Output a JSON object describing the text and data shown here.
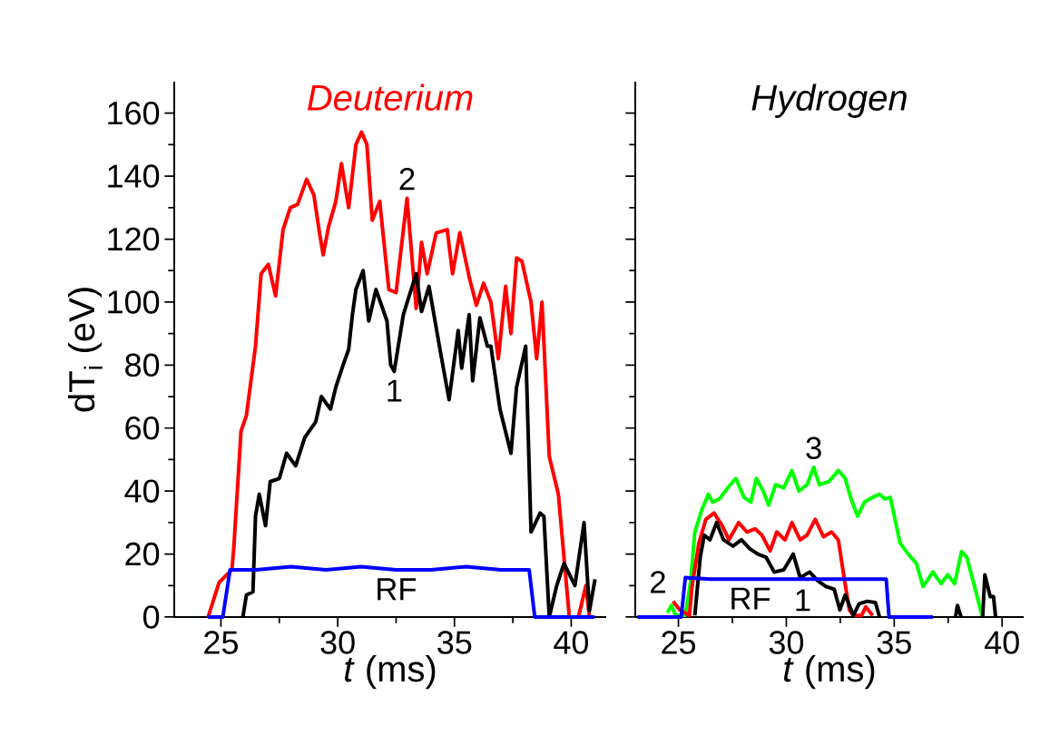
{
  "chart_data": [
    {
      "type": "line",
      "title": "Deuterium",
      "xlabel": "*t* (ms)",
      "ylabel": "dT$_{i}$ (eV)",
      "xlim": [
        23,
        41.5
      ],
      "ylim": [
        0,
        170
      ],
      "xticks": [
        25,
        30,
        35,
        40
      ],
      "yticks": [
        0,
        20,
        40,
        60,
        80,
        100,
        120,
        140,
        160
      ],
      "series": [
        {
          "name": "2",
          "color": "#ff0000",
          "x": [
            24.45,
            24.92,
            25.47,
            25.55,
            25.86,
            26.09,
            26.48,
            26.72,
            27.03,
            27.34,
            27.66,
            27.97,
            28.28,
            28.67,
            28.98,
            29.22,
            29.38,
            29.61,
            29.92,
            30.16,
            30.47,
            30.78,
            31.02,
            31.25,
            31.48,
            31.8,
            32.19,
            32.5,
            32.97,
            33.36,
            33.59,
            33.83,
            34.22,
            34.69,
            34.92,
            35.23,
            35.63,
            35.94,
            36.25,
            36.56,
            36.88,
            37.19,
            37.42,
            37.66,
            37.89,
            38.28,
            38.52,
            38.75,
            39.06,
            39.45,
            39.92,
            40.31,
            40.63,
            40.78
          ],
          "values": [
            0,
            11,
            15,
            22,
            59,
            64,
            86,
            109,
            112,
            102,
            123,
            130,
            131,
            139,
            134,
            122,
            115,
            124,
            132,
            144,
            130,
            150,
            154,
            150,
            126,
            132,
            104,
            103,
            133,
            98,
            119,
            109,
            122,
            123,
            109,
            122,
            108,
            99,
            106,
            100,
            82,
            105,
            90,
            114,
            113,
            100,
            82,
            100,
            51,
            39,
            0,
            0,
            10,
            0
          ]
        },
        {
          "name": "1",
          "color": "#000000",
          "x": [
            25.94,
            26.09,
            26.37,
            26.48,
            26.64,
            26.91,
            27.11,
            27.5,
            27.81,
            28.2,
            28.59,
            29.06,
            29.3,
            29.69,
            29.92,
            30.23,
            30.47,
            30.63,
            30.78,
            31.09,
            31.33,
            31.64,
            32.11,
            32.27,
            32.42,
            32.81,
            33.36,
            33.59,
            33.91,
            34.38,
            34.77,
            35.16,
            35.31,
            35.63,
            35.78,
            36.09,
            36.41,
            36.56,
            36.95,
            37.42,
            37.66,
            38.05,
            38.28,
            38.67,
            38.83,
            39.06,
            39.38,
            39.69,
            40.16,
            40.55,
            40.78,
            41.02
          ],
          "values": [
            0,
            7,
            8,
            32,
            39,
            29,
            43,
            44,
            52,
            48,
            57,
            62,
            70,
            66,
            73,
            80,
            85,
            96,
            104,
            110,
            94,
            104,
            94,
            80,
            78,
            96,
            109,
            97,
            105,
            85,
            69,
            91,
            79,
            96,
            75,
            95,
            86,
            86,
            66,
            52,
            73,
            86,
            27,
            33,
            32,
            0,
            10,
            17,
            10,
            30,
            2,
            12
          ]
        },
        {
          "name": "RF",
          "color": "#0000ff",
          "x": [
            24.45,
            25.08,
            25.39,
            26.5,
            28,
            29.5,
            31,
            32.5,
            34,
            35.5,
            37,
            38.2,
            38.44,
            41.0
          ],
          "values": [
            0,
            0,
            15,
            15,
            16,
            15,
            16,
            15,
            15,
            16,
            15,
            15,
            0,
            0
          ]
        }
      ],
      "legend": false
    },
    {
      "type": "line",
      "title": "Hydrogen",
      "xlabel": "*t* (ms)",
      "xlim": [
        23,
        41
      ],
      "ylim": [
        0,
        170
      ],
      "xticks": [
        25,
        30,
        35,
        40
      ],
      "yticks": [
        0,
        20,
        40,
        60,
        80,
        100,
        120,
        140,
        160
      ],
      "tick_labels": "x",
      "series": [
        {
          "name": "3",
          "color": "#00ff00",
          "x": [
            24.49,
            24.68,
            24.87,
            25.32,
            25.57,
            25.76,
            26.08,
            26.39,
            26.58,
            26.9,
            27.28,
            27.66,
            28.04,
            28.36,
            28.61,
            28.93,
            29.18,
            29.5,
            29.88,
            30.26,
            30.58,
            30.96,
            31.27,
            31.53,
            31.97,
            32.41,
            32.73,
            32.98,
            33.3,
            33.62,
            34.0,
            34.32,
            34.57,
            34.82,
            35.27,
            35.65,
            36.03,
            36.34,
            36.79,
            37.17,
            37.48,
            37.8,
            38.12,
            38.37,
            38.69,
            39.07
          ],
          "values": [
            1.4,
            3.7,
            0.5,
            0.5,
            11.5,
            27,
            34,
            39,
            36.5,
            37.5,
            41,
            44,
            38,
            36.5,
            44,
            40,
            35.5,
            42,
            41,
            46.5,
            40,
            42,
            47.5,
            42,
            43,
            46.5,
            44,
            38,
            32,
            36.5,
            38,
            39,
            37.5,
            38,
            23.5,
            20,
            17,
            9.7,
            14.3,
            10.6,
            13.4,
            10.6,
            20.8,
            18.9,
            10.6,
            0.5
          ]
        },
        {
          "name": "2",
          "color": "#ff0000",
          "x": [
            24.75,
            25.06,
            25.51,
            25.63,
            25.95,
            26.27,
            26.65,
            27.03,
            27.34,
            27.79,
            28.17,
            28.55,
            28.87,
            29.25,
            29.56,
            29.94,
            30.26,
            30.64,
            30.96,
            31.34,
            31.72,
            32.1,
            32.41,
            32.6,
            32.92,
            33.11,
            33.49,
            33.68,
            34.0
          ],
          "values": [
            5,
            2.3,
            0.5,
            9.7,
            23.5,
            31,
            33,
            29,
            24.5,
            30,
            27,
            28,
            26,
            21,
            27,
            24.5,
            30,
            24.5,
            26,
            31,
            25.5,
            27,
            24.5,
            16,
            2.3,
            0.5,
            0.5,
            3.2,
            0.5
          ]
        },
        {
          "name": "1",
          "color": "#000000",
          "x": [
            25.76,
            26.01,
            26.2,
            26.46,
            26.77,
            27.09,
            27.53,
            27.92,
            28.3,
            28.68,
            29.06,
            29.44,
            29.88,
            30.32,
            30.64,
            31.08,
            31.46,
            31.84,
            32.22,
            32.48,
            32.73,
            33.11,
            33.37,
            33.75,
            34.13,
            34.32,
            36.0,
            37.84,
            37.93,
            38.1,
            38.5,
            39.1,
            39.2,
            39.45,
            39.6,
            39.7
          ],
          "values": [
            0.5,
            19,
            26,
            24.5,
            30,
            24.5,
            22.5,
            24.5,
            21.7,
            20,
            19,
            14.3,
            15,
            20,
            12.5,
            14.3,
            11.5,
            9.7,
            8.8,
            2.3,
            7,
            0.5,
            4.2,
            5,
            4.6,
            0,
            null,
            0,
            3.7,
            0,
            null,
            0,
            13.4,
            6.5,
            6.5,
            0
          ]
        },
        {
          "name": "RF",
          "color": "#0000ff",
          "x": [
            23.1,
            25.13,
            25.32,
            26.5,
            28,
            29.5,
            31,
            32.5,
            34,
            34.63,
            34.76,
            36.79
          ],
          "values": [
            0,
            0,
            12.5,
            12,
            12,
            12,
            12,
            12,
            12,
            12,
            0,
            0
          ]
        }
      ],
      "legend": false
    }
  ]
}
